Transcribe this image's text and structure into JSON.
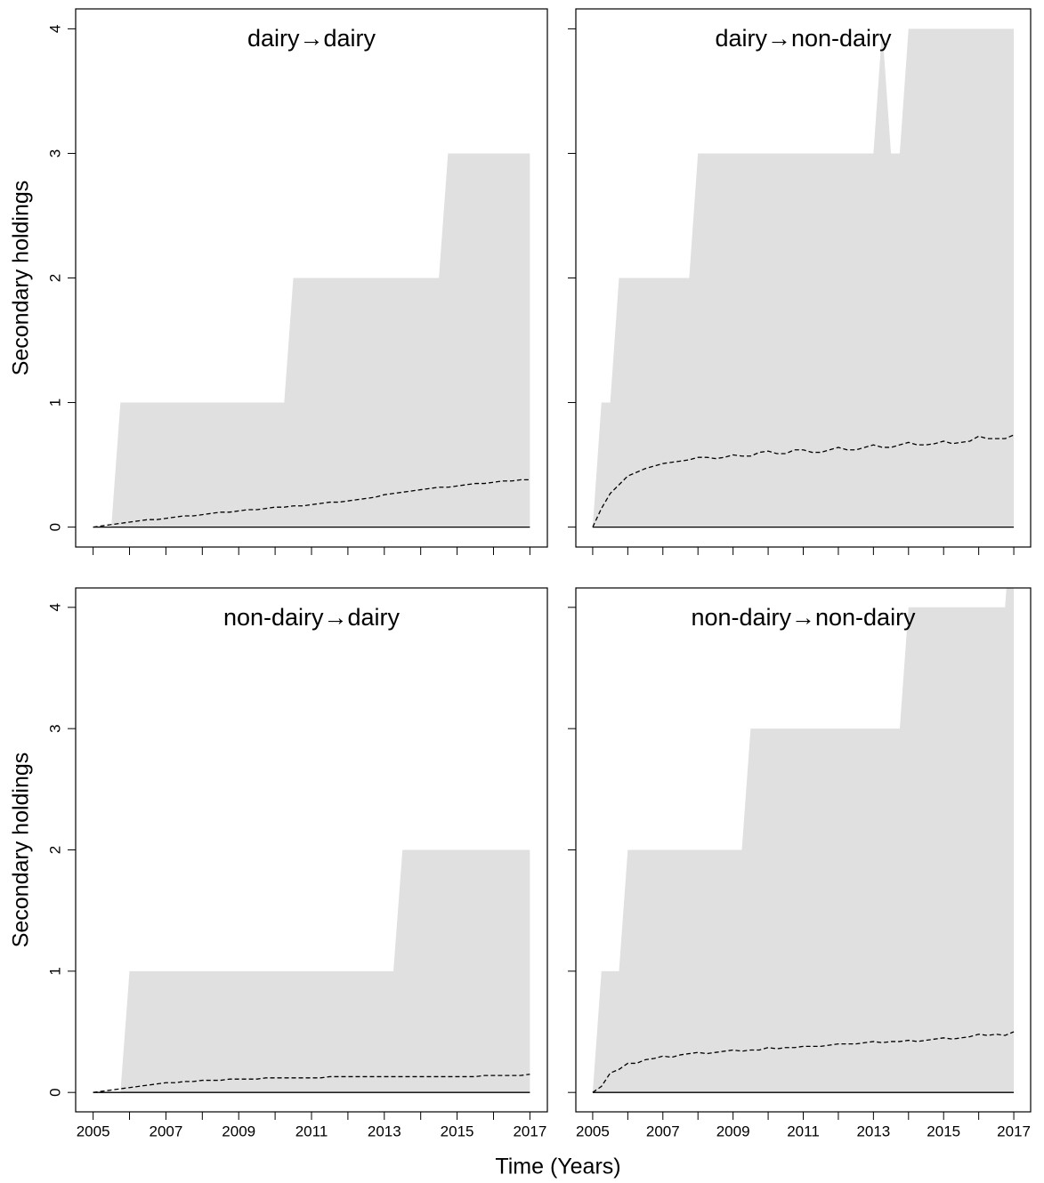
{
  "xlabel": "Time (Years)",
  "chart_data": [
    {
      "type": "band",
      "title": "dairy→dairy",
      "ylabel": "Secondary holdings",
      "x": [
        2005,
        2005.25,
        2005.5,
        2005.75,
        2006,
        2006.25,
        2006.5,
        2006.75,
        2007,
        2007.25,
        2007.5,
        2007.75,
        2008,
        2008.25,
        2008.5,
        2008.75,
        2009,
        2009.25,
        2009.5,
        2009.75,
        2010,
        2010.25,
        2010.5,
        2010.75,
        2011,
        2011.25,
        2011.5,
        2011.75,
        2012,
        2012.25,
        2012.5,
        2012.75,
        2013,
        2013.25,
        2013.5,
        2013.75,
        2014,
        2014.25,
        2014.5,
        2014.75,
        2015,
        2015.25,
        2015.5,
        2015.75,
        2016,
        2016.25,
        2016.5,
        2016.75,
        2017
      ],
      "series": [
        {
          "style": "area",
          "color": "#e0e0e0",
          "values": [
            0,
            0,
            0,
            1,
            1,
            1,
            1,
            1,
            1,
            1,
            1,
            1,
            1,
            1,
            1,
            1,
            1,
            1,
            1,
            1,
            1,
            1,
            2,
            2,
            2,
            2,
            2,
            2,
            2,
            2,
            2,
            2,
            2,
            2,
            2,
            2,
            2,
            2,
            2,
            3,
            3,
            3,
            3,
            3,
            3,
            3,
            3,
            3,
            3
          ]
        },
        {
          "style": "dashed",
          "color": "#000000",
          "values": [
            0,
            0.01,
            0.02,
            0.03,
            0.04,
            0.05,
            0.06,
            0.06,
            0.07,
            0.08,
            0.09,
            0.09,
            0.1,
            0.11,
            0.12,
            0.12,
            0.13,
            0.14,
            0.14,
            0.15,
            0.16,
            0.16,
            0.17,
            0.17,
            0.18,
            0.19,
            0.2,
            0.2,
            0.21,
            0.22,
            0.23,
            0.24,
            0.26,
            0.27,
            0.28,
            0.29,
            0.3,
            0.31,
            0.32,
            0.32,
            0.33,
            0.34,
            0.35,
            0.35,
            0.36,
            0.37,
            0.37,
            0.38,
            0.38
          ]
        },
        {
          "style": "solid",
          "color": "#000000",
          "values": [
            0,
            0,
            0,
            0,
            0,
            0,
            0,
            0,
            0,
            0,
            0,
            0,
            0,
            0,
            0,
            0,
            0,
            0,
            0,
            0,
            0,
            0,
            0,
            0,
            0,
            0,
            0,
            0,
            0,
            0,
            0,
            0,
            0,
            0,
            0,
            0,
            0,
            0,
            0,
            0,
            0,
            0,
            0,
            0,
            0,
            0,
            0,
            0,
            0
          ]
        }
      ],
      "xlim": [
        2004.52,
        2017.48
      ],
      "xticks": [
        2005,
        2007,
        2009,
        2011,
        2013,
        2015,
        2017
      ],
      "xminorticks": [
        2006,
        2008,
        2010,
        2012,
        2014,
        2016
      ],
      "ylim": [
        -0.16,
        4.16
      ],
      "yticks": [
        0,
        1,
        2,
        3,
        4
      ],
      "show_xticklabels": false,
      "show_yticklabels": true
    },
    {
      "type": "band",
      "title": "dairy→non-dairy",
      "x": [
        2005,
        2005.25,
        2005.5,
        2005.75,
        2006,
        2006.25,
        2006.5,
        2006.75,
        2007,
        2007.25,
        2007.5,
        2007.75,
        2008,
        2008.25,
        2008.5,
        2008.75,
        2009,
        2009.25,
        2009.5,
        2009.75,
        2010,
        2010.25,
        2010.5,
        2010.75,
        2011,
        2011.25,
        2011.5,
        2011.75,
        2012,
        2012.25,
        2012.5,
        2012.75,
        2013,
        2013.25,
        2013.5,
        2013.75,
        2014,
        2014.25,
        2014.5,
        2014.75,
        2015,
        2015.25,
        2015.5,
        2015.75,
        2016,
        2016.25,
        2016.5,
        2016.75,
        2017
      ],
      "series": [
        {
          "style": "area",
          "color": "#e0e0e0",
          "values": [
            0,
            1,
            1,
            2,
            2,
            2,
            2,
            2,
            2,
            2,
            2,
            2,
            3,
            3,
            3,
            3,
            3,
            3,
            3,
            3,
            3,
            3,
            3,
            3,
            3,
            3,
            3,
            3,
            3,
            3,
            3,
            3,
            3,
            4,
            3,
            3,
            4,
            4,
            4,
            4,
            4,
            4,
            4,
            4,
            4,
            4,
            4,
            4,
            4
          ]
        },
        {
          "style": "dashed",
          "color": "#000000",
          "values": [
            0,
            0.15,
            0.27,
            0.34,
            0.41,
            0.44,
            0.47,
            0.49,
            0.51,
            0.52,
            0.53,
            0.54,
            0.56,
            0.56,
            0.55,
            0.56,
            0.58,
            0.57,
            0.57,
            0.6,
            0.61,
            0.59,
            0.59,
            0.62,
            0.62,
            0.6,
            0.6,
            0.62,
            0.64,
            0.62,
            0.62,
            0.64,
            0.66,
            0.64,
            0.64,
            0.66,
            0.68,
            0.66,
            0.66,
            0.67,
            0.69,
            0.67,
            0.68,
            0.69,
            0.73,
            0.71,
            0.71,
            0.71,
            0.74
          ]
        },
        {
          "style": "solid",
          "color": "#000000",
          "values": [
            0,
            0,
            0,
            0,
            0,
            0,
            0,
            0,
            0,
            0,
            0,
            0,
            0,
            0,
            0,
            0,
            0,
            0,
            0,
            0,
            0,
            0,
            0,
            0,
            0,
            0,
            0,
            0,
            0,
            0,
            0,
            0,
            0,
            0,
            0,
            0,
            0,
            0,
            0,
            0,
            0,
            0,
            0,
            0,
            0,
            0,
            0,
            0,
            0
          ]
        }
      ],
      "xlim": [
        2004.52,
        2017.48
      ],
      "xticks": [
        2005,
        2007,
        2009,
        2011,
        2013,
        2015,
        2017
      ],
      "xminorticks": [
        2006,
        2008,
        2010,
        2012,
        2014,
        2016
      ],
      "ylim": [
        -0.16,
        4.16
      ],
      "yticks": [
        0,
        1,
        2,
        3,
        4
      ],
      "show_xticklabels": false,
      "show_yticklabels": false
    },
    {
      "type": "band",
      "title": "non-dairy→dairy",
      "ylabel": "Secondary holdings",
      "x": [
        2005,
        2005.25,
        2005.5,
        2005.75,
        2006,
        2006.25,
        2006.5,
        2006.75,
        2007,
        2007.25,
        2007.5,
        2007.75,
        2008,
        2008.25,
        2008.5,
        2008.75,
        2009,
        2009.25,
        2009.5,
        2009.75,
        2010,
        2010.25,
        2010.5,
        2010.75,
        2011,
        2011.25,
        2011.5,
        2011.75,
        2012,
        2012.25,
        2012.5,
        2012.75,
        2013,
        2013.25,
        2013.5,
        2013.75,
        2014,
        2014.25,
        2014.5,
        2014.75,
        2015,
        2015.25,
        2015.5,
        2015.75,
        2016,
        2016.25,
        2016.5,
        2016.75,
        2017
      ],
      "series": [
        {
          "style": "area",
          "color": "#e0e0e0",
          "values": [
            0,
            0,
            0,
            0,
            1,
            1,
            1,
            1,
            1,
            1,
            1,
            1,
            1,
            1,
            1,
            1,
            1,
            1,
            1,
            1,
            1,
            1,
            1,
            1,
            1,
            1,
            1,
            1,
            1,
            1,
            1,
            1,
            1,
            1,
            2,
            2,
            2,
            2,
            2,
            2,
            2,
            2,
            2,
            2,
            2,
            2,
            2,
            2,
            2
          ]
        },
        {
          "style": "dashed",
          "color": "#000000",
          "values": [
            0,
            0.01,
            0.02,
            0.03,
            0.04,
            0.05,
            0.06,
            0.07,
            0.08,
            0.08,
            0.09,
            0.09,
            0.1,
            0.1,
            0.1,
            0.11,
            0.11,
            0.11,
            0.11,
            0.12,
            0.12,
            0.12,
            0.12,
            0.12,
            0.12,
            0.12,
            0.13,
            0.13,
            0.13,
            0.13,
            0.13,
            0.13,
            0.13,
            0.13,
            0.13,
            0.13,
            0.13,
            0.13,
            0.13,
            0.13,
            0.13,
            0.13,
            0.13,
            0.14,
            0.14,
            0.14,
            0.14,
            0.14,
            0.15
          ]
        },
        {
          "style": "solid",
          "color": "#000000",
          "values": [
            0,
            0,
            0,
            0,
            0,
            0,
            0,
            0,
            0,
            0,
            0,
            0,
            0,
            0,
            0,
            0,
            0,
            0,
            0,
            0,
            0,
            0,
            0,
            0,
            0,
            0,
            0,
            0,
            0,
            0,
            0,
            0,
            0,
            0,
            0,
            0,
            0,
            0,
            0,
            0,
            0,
            0,
            0,
            0,
            0,
            0,
            0,
            0,
            0
          ]
        }
      ],
      "xlim": [
        2004.52,
        2017.48
      ],
      "xticks": [
        2005,
        2007,
        2009,
        2011,
        2013,
        2015,
        2017
      ],
      "xminorticks": [
        2006,
        2008,
        2010,
        2012,
        2014,
        2016
      ],
      "ylim": [
        -0.16,
        4.16
      ],
      "yticks": [
        0,
        1,
        2,
        3,
        4
      ],
      "show_xticklabels": true,
      "show_yticklabels": true
    },
    {
      "type": "band",
      "title": "non-dairy→non-dairy",
      "x": [
        2005,
        2005.25,
        2005.5,
        2005.75,
        2006,
        2006.25,
        2006.5,
        2006.75,
        2007,
        2007.25,
        2007.5,
        2007.75,
        2008,
        2008.25,
        2008.5,
        2008.75,
        2009,
        2009.25,
        2009.5,
        2009.75,
        2010,
        2010.25,
        2010.5,
        2010.75,
        2011,
        2011.25,
        2011.5,
        2011.75,
        2012,
        2012.25,
        2012.5,
        2012.75,
        2013,
        2013.25,
        2013.5,
        2013.75,
        2014,
        2014.25,
        2014.5,
        2014.75,
        2015,
        2015.25,
        2015.5,
        2015.75,
        2016,
        2016.25,
        2016.5,
        2016.75,
        2017
      ],
      "series": [
        {
          "style": "area",
          "color": "#e0e0e0",
          "values": [
            0,
            1,
            1,
            1,
            2,
            2,
            2,
            2,
            2,
            2,
            2,
            2,
            2,
            2,
            2,
            2,
            2,
            2,
            3,
            3,
            3,
            3,
            3,
            3,
            3,
            3,
            3,
            3,
            3,
            3,
            3,
            3,
            3,
            3,
            3,
            3,
            4,
            4,
            4,
            4,
            4,
            4,
            4,
            4,
            4,
            4,
            4,
            4,
            5
          ]
        },
        {
          "style": "dashed",
          "color": "#000000",
          "values": [
            0,
            0.05,
            0.16,
            0.19,
            0.24,
            0.24,
            0.27,
            0.28,
            0.3,
            0.29,
            0.31,
            0.32,
            0.33,
            0.32,
            0.33,
            0.34,
            0.35,
            0.34,
            0.35,
            0.35,
            0.37,
            0.36,
            0.37,
            0.37,
            0.38,
            0.38,
            0.38,
            0.39,
            0.4,
            0.4,
            0.4,
            0.41,
            0.42,
            0.41,
            0.42,
            0.42,
            0.43,
            0.42,
            0.43,
            0.44,
            0.45,
            0.44,
            0.45,
            0.46,
            0.48,
            0.47,
            0.48,
            0.47,
            0.5
          ]
        },
        {
          "style": "solid",
          "color": "#000000",
          "values": [
            0,
            0,
            0,
            0,
            0,
            0,
            0,
            0,
            0,
            0,
            0,
            0,
            0,
            0,
            0,
            0,
            0,
            0,
            0,
            0,
            0,
            0,
            0,
            0,
            0,
            0,
            0,
            0,
            0,
            0,
            0,
            0,
            0,
            0,
            0,
            0,
            0,
            0,
            0,
            0,
            0,
            0,
            0,
            0,
            0,
            0,
            0,
            0,
            0
          ]
        }
      ],
      "xlim": [
        2004.52,
        2017.48
      ],
      "xticks": [
        2005,
        2007,
        2009,
        2011,
        2013,
        2015,
        2017
      ],
      "xminorticks": [
        2006,
        2008,
        2010,
        2012,
        2014,
        2016
      ],
      "ylim": [
        -0.16,
        4.16
      ],
      "yticks": [
        0,
        1,
        2,
        3,
        4
      ],
      "show_xticklabels": true,
      "show_yticklabels": false
    }
  ]
}
